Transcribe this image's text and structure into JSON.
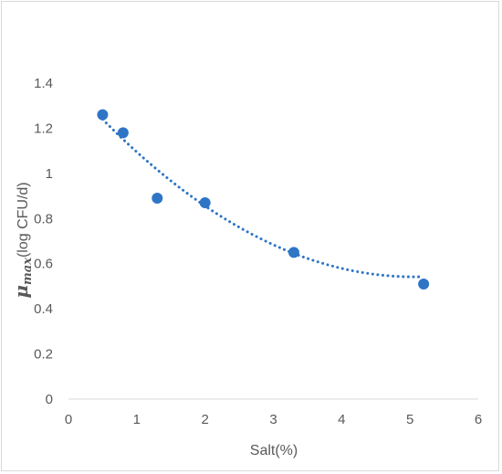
{
  "chart_data": {
    "type": "scatter",
    "title": "",
    "xlabel": "Salt(%)",
    "ylabel_symbol": "μ",
    "ylabel_subscript": "max",
    "ylabel_unit": "(log CFU/d)",
    "xlim": [
      0,
      6
    ],
    "ylim": [
      0,
      1.4
    ],
    "x_ticks": [
      0,
      1,
      2,
      3,
      4,
      5,
      6
    ],
    "y_ticks": [
      0,
      0.2,
      0.4,
      0.6,
      0.8,
      1,
      1.2,
      1.4
    ],
    "x_tick_labels": [
      "0",
      "1",
      "2",
      "3",
      "4",
      "5",
      "6"
    ],
    "y_tick_labels": [
      "0",
      "0.2",
      "0.4",
      "0.6",
      "0.8",
      "1",
      "1.2",
      "1.4"
    ],
    "grid": false,
    "legend": false,
    "series": [
      {
        "marker_color": "#2e75c6",
        "x": [
          0.5,
          0.8,
          1.3,
          2.0,
          3.3,
          5.2
        ],
        "y": [
          1.26,
          1.18,
          0.89,
          0.87,
          0.65,
          0.51
        ]
      }
    ],
    "trendline": {
      "type": "polynomial",
      "order": 2,
      "style": "dotted",
      "color": "#2e75c6",
      "coefficients": [
        1.4014,
        -0.3401,
        0.03364
      ],
      "x_range": [
        0.5,
        5.2
      ]
    }
  }
}
